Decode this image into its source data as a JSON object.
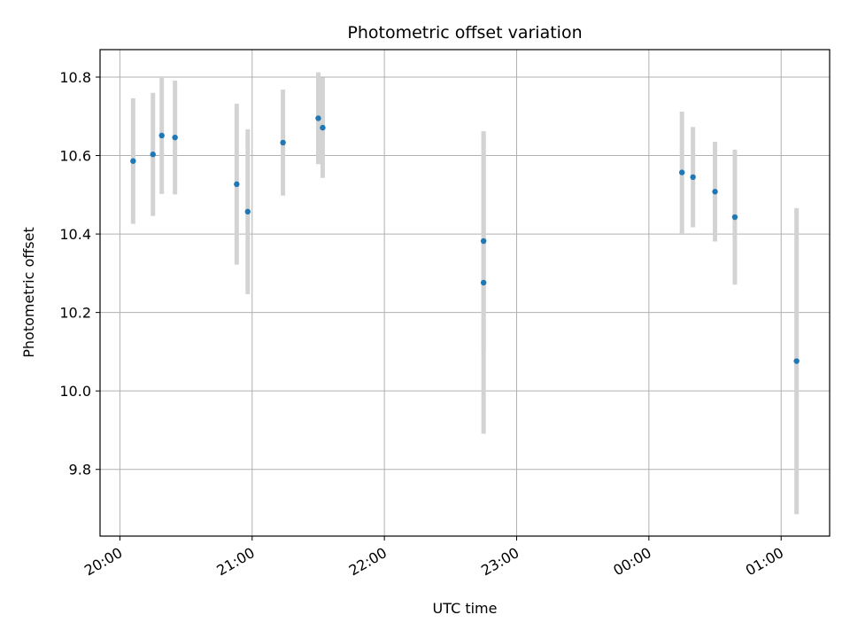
{
  "chart_data": {
    "type": "scatter",
    "title": "Photometric offset variation",
    "xlabel": "UTC time",
    "ylabel": "Photometric offset",
    "grid": true,
    "x_unit": "UTC time (HH:MM)",
    "xlim": [
      "19:51",
      "01:22"
    ],
    "ylim": [
      9.63,
      10.87
    ],
    "x_ticks": [
      "20:00",
      "21:00",
      "22:00",
      "23:00",
      "00:00",
      "01:00"
    ],
    "y_ticks": [
      9.8,
      10.0,
      10.2,
      10.4,
      10.6,
      10.8
    ],
    "y_tick_labels": [
      "9.8",
      "10.0",
      "10.2",
      "10.4",
      "10.6",
      "10.8"
    ],
    "colors": {
      "marker": "#1f77b4",
      "errorbar": "#d3d3d3",
      "grid": "#b0b0b0"
    },
    "points": [
      {
        "x": "20:06",
        "y": 10.586,
        "yerr": 0.16
      },
      {
        "x": "20:15",
        "y": 10.603,
        "yerr": 0.157
      },
      {
        "x": "20:19",
        "y": 10.651,
        "yerr": 0.149
      },
      {
        "x": "20:25",
        "y": 10.646,
        "yerr": 0.145
      },
      {
        "x": "20:53",
        "y": 10.527,
        "yerr": 0.205
      },
      {
        "x": "20:58",
        "y": 10.457,
        "yerr": 0.21
      },
      {
        "x": "21:14",
        "y": 10.633,
        "yerr": 0.135
      },
      {
        "x": "21:30",
        "y": 10.695,
        "yerr": 0.117
      },
      {
        "x": "21:32",
        "y": 10.671,
        "yerr": 0.128
      },
      {
        "x": "22:45",
        "y": 10.382,
        "yerr": 0.28
      },
      {
        "x": "22:45",
        "y": 10.276,
        "yerr": 0.385
      },
      {
        "x": "00:15",
        "y": 10.557,
        "yerr": 0.155
      },
      {
        "x": "00:20",
        "y": 10.545,
        "yerr": 0.128
      },
      {
        "x": "00:30",
        "y": 10.508,
        "yerr": 0.127
      },
      {
        "x": "00:39",
        "y": 10.443,
        "yerr": 0.172
      },
      {
        "x": "01:07",
        "y": 10.076,
        "yerr": 0.39
      }
    ]
  }
}
